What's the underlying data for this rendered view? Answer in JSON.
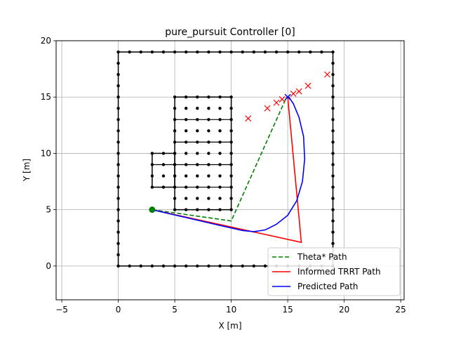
{
  "chart_data": {
    "type": "line",
    "title": "pure_pursuit Controller [0]",
    "xlabel": "X [m]",
    "ylabel": "Y [m]",
    "xlim": [
      -5.5,
      25.3
    ],
    "ylim": [
      -3,
      20
    ],
    "xticks": [
      -5,
      0,
      5,
      10,
      15,
      20,
      25
    ],
    "yticks": [
      0,
      5,
      10,
      15,
      20
    ],
    "grid": true,
    "legend_position": "lower-right",
    "series": [
      {
        "name": "Theta* Path",
        "color": "#008000",
        "style": "dashed",
        "points": [
          [
            3,
            5
          ],
          [
            10,
            4
          ],
          [
            14.9,
            15
          ]
        ]
      },
      {
        "name": "Informed TRRT Path",
        "color": "#ff0000",
        "style": "solid",
        "points": [
          [
            3,
            5
          ],
          [
            16.2,
            2.1
          ],
          [
            15,
            15
          ]
        ]
      },
      {
        "name": "Predicted Path",
        "color": "#0000ff",
        "style": "solid",
        "points": [
          [
            3,
            5
          ],
          [
            6,
            4.3
          ],
          [
            9,
            3.6
          ],
          [
            11,
            3.15
          ],
          [
            12,
            3.05
          ],
          [
            13,
            3.2
          ],
          [
            14,
            3.7
          ],
          [
            15,
            4.5
          ],
          [
            15.8,
            5.8
          ],
          [
            16.3,
            7.5
          ],
          [
            16.5,
            9.5
          ],
          [
            16.4,
            11.5
          ],
          [
            16,
            13.2
          ],
          [
            15.5,
            14.4
          ],
          [
            15.1,
            15
          ]
        ]
      }
    ],
    "start_point": {
      "x": 3,
      "y": 5,
      "color": "#008000"
    },
    "obstacle_marks": {
      "color": "#000000",
      "outer_boundary": {
        "x0": 0,
        "y0": 0,
        "x1": 19,
        "y1": 19,
        "spacing": 1
      },
      "inner_blocks": [
        {
          "x0": 5,
          "y0": 5,
          "x1": 10,
          "y1": 15,
          "spacing": 1
        },
        {
          "x0": 3,
          "y0": 7,
          "x1": 5,
          "y1": 10,
          "spacing": 1
        }
      ]
    },
    "x_markers": {
      "color": "#ff0000",
      "points": [
        [
          11.5,
          13.1
        ],
        [
          13.2,
          14
        ],
        [
          14,
          14.5
        ],
        [
          14.5,
          14.8
        ],
        [
          15,
          15
        ],
        [
          15.5,
          15.3
        ],
        [
          16,
          15.5
        ],
        [
          16.8,
          16
        ],
        [
          18.5,
          17
        ]
      ]
    },
    "heading_marker": {
      "x": 15,
      "y": 15,
      "color": "#0000ff"
    }
  }
}
